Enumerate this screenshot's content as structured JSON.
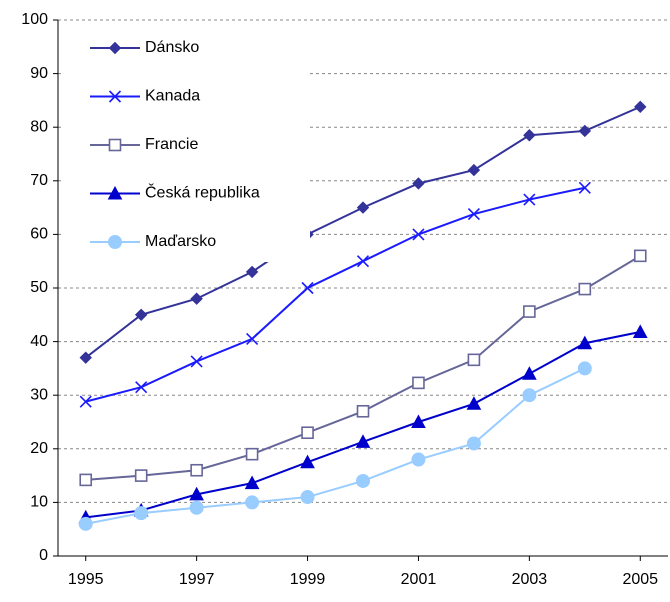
{
  "chart_data": {
    "type": "line",
    "x": [
      1995,
      1996,
      1997,
      1998,
      1999,
      2000,
      2001,
      2002,
      2003,
      2004,
      2005
    ],
    "xlim": [
      1994.5,
      2005.5
    ],
    "xticks": [
      1995,
      1997,
      1999,
      2001,
      2003,
      2005
    ],
    "ylim": [
      0,
      100
    ],
    "yticks": [
      0,
      10,
      20,
      30,
      40,
      50,
      60,
      70,
      80,
      90,
      100
    ],
    "grid": true,
    "legend": "top-left",
    "series": [
      {
        "name": "Dánsko",
        "color": "#333399",
        "marker": "diamond",
        "values": [
          37,
          45,
          48,
          53,
          60,
          65,
          69.5,
          72,
          78.5,
          79.3,
          83.8
        ]
      },
      {
        "name": "Kanada",
        "color": "#1a1aff",
        "marker": "x",
        "values": [
          28.8,
          31.5,
          36.3,
          40.5,
          50,
          55,
          60,
          63.8,
          66.5,
          68.7,
          null
        ]
      },
      {
        "name": "Francie",
        "color": "#666699",
        "marker": "square-open",
        "values": [
          14.2,
          15,
          16,
          19,
          23,
          27,
          32.3,
          36.6,
          45.6,
          49.8,
          56
        ]
      },
      {
        "name": "Česká republika",
        "color": "#0000cc",
        "marker": "triangle",
        "values": [
          7.2,
          8.5,
          11.5,
          13.6,
          17.5,
          21.3,
          25,
          28.4,
          34,
          39.7,
          41.8
        ]
      },
      {
        "name": "Maďarsko",
        "color": "#99ccff",
        "marker": "circle",
        "values": [
          6,
          8,
          9,
          10,
          11,
          14,
          18,
          21,
          30,
          35,
          null
        ]
      }
    ]
  }
}
